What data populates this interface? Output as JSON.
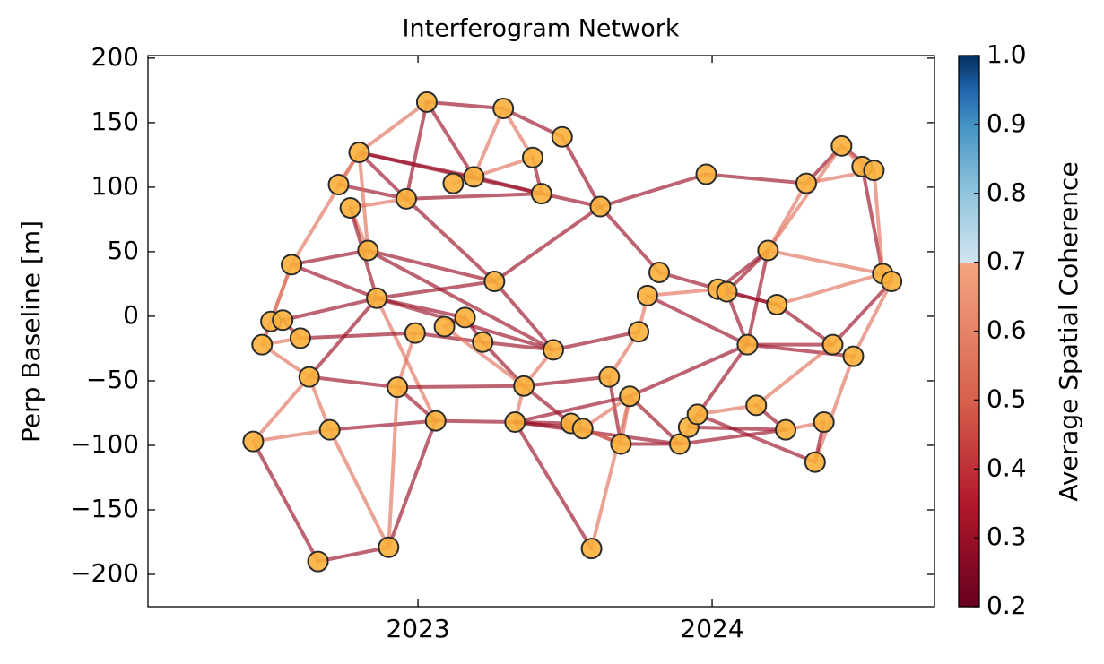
{
  "chart_data": {
    "type": "network",
    "title": "Interferogram Network",
    "ylabel": "Perp Baseline [m]",
    "xlim": [
      2022.082,
      2024.756
    ],
    "ylim": [
      -225,
      202
    ],
    "xticks": [
      2023,
      2024
    ],
    "yticks": [
      {
        "value": -200,
        "label": "−200"
      },
      {
        "value": -150,
        "label": "−150"
      },
      {
        "value": -100,
        "label": "−100"
      },
      {
        "value": -50,
        "label": "−50"
      },
      0,
      50,
      100,
      150,
      200
    ],
    "nodes": {
      "color": "#fbb03b",
      "x": [
        2023.03,
        2023.29,
        2023.49,
        2023.39,
        2023.19,
        2023.12,
        2023.42,
        2023.62,
        2022.8,
        2022.73,
        2022.77,
        2022.96,
        2022.83,
        2022.57,
        2022.86,
        2023.26,
        2022.5,
        2022.54,
        2022.47,
        2022.6,
        2022.99,
        2023.09,
        2023.16,
        2023.22,
        2023.46,
        2022.63,
        2022.93,
        2023.36,
        2023.06,
        2023.33,
        2023.52,
        2023.56,
        2022.7,
        2022.44,
        2022.66,
        2022.9,
        2023.59,
        2023.65,
        2023.72,
        2023.75,
        2023.78,
        2023.82,
        2023.69,
        2023.89,
        2023.92,
        2023.95,
        2023.98,
        2024.02,
        2024.05,
        2024.12,
        2024.19,
        2024.22,
        2024.15,
        2024.25,
        2024.32,
        2024.35,
        2024.38,
        2024.41,
        2024.44,
        2024.48,
        2024.51,
        2024.55,
        2024.58,
        2024.61
      ],
      "y": [
        166,
        161,
        139,
        123,
        108,
        103,
        95,
        85,
        127,
        102,
        84,
        91,
        51,
        40,
        14,
        27,
        -4,
        -3,
        -22,
        -17,
        -13,
        -8,
        -1,
        -20,
        -26,
        -47,
        -55,
        -54,
        -81,
        -82,
        -83,
        -87,
        -88,
        -97,
        -190,
        -179,
        -180,
        -47,
        -62,
        -12,
        16,
        34,
        -99,
        -99,
        -86,
        -76,
        110,
        21,
        19,
        -22,
        51,
        9,
        -69,
        -88,
        103,
        -113,
        -82,
        -22,
        132,
        -31,
        116,
        113,
        33,
        27
      ]
    },
    "edges": {
      "x": [
        [
          2023.03,
          2023.29
        ],
        [
          2023.03,
          2022.8
        ],
        [
          2023.03,
          2023.19
        ],
        [
          2023.03,
          2022.96
        ],
        [
          2023.29,
          2023.19
        ],
        [
          2023.29,
          2023.39
        ],
        [
          2023.29,
          2023.49
        ],
        [
          2023.49,
          2023.62
        ],
        [
          2023.39,
          2023.19
        ],
        [
          2023.39,
          2023.42
        ],
        [
          2023.19,
          2023.12
        ],
        [
          2023.19,
          2023.42
        ],
        [
          2022.8,
          2023.19
        ],
        [
          2022.8,
          2023.42
        ],
        [
          2022.8,
          2022.96
        ],
        [
          2022.8,
          2022.73
        ],
        [
          2022.8,
          2022.57
        ],
        [
          2022.73,
          2022.96
        ],
        [
          2022.77,
          2022.96
        ],
        [
          2022.77,
          2022.83
        ],
        [
          2022.96,
          2023.42
        ],
        [
          2022.96,
          2023.26
        ],
        [
          2022.83,
          2022.8
        ],
        [
          2022.83,
          2022.57
        ],
        [
          2022.83,
          2023.26
        ],
        [
          2022.57,
          2022.86
        ],
        [
          2022.57,
          2022.47
        ],
        [
          2022.57,
          2022.5
        ],
        [
          2022.86,
          2022.77
        ],
        [
          2022.86,
          2023.26
        ],
        [
          2022.86,
          2022.54
        ],
        [
          2022.86,
          2022.63
        ],
        [
          2022.86,
          2023.06
        ],
        [
          2022.86,
          2023.46
        ],
        [
          2023.26,
          2023.62
        ],
        [
          2023.26,
          2023.46
        ],
        [
          2023.42,
          2023.62
        ],
        [
          2023.62,
          2023.82
        ],
        [
          2023.62,
          2023.98
        ],
        [
          2023.98,
          2024.32
        ],
        [
          2024.32,
          2024.44
        ],
        [
          2024.32,
          2024.55
        ],
        [
          2024.44,
          2024.55
        ],
        [
          2024.44,
          2024.19
        ],
        [
          2024.32,
          2024.19
        ],
        [
          2024.19,
          2024.05
        ],
        [
          2024.19,
          2024.02
        ],
        [
          2024.19,
          2024.58
        ],
        [
          2024.19,
          2024.12
        ],
        [
          2024.51,
          2024.58
        ],
        [
          2024.55,
          2024.58
        ],
        [
          2024.44,
          2024.51
        ],
        [
          2024.58,
          2024.22
        ],
        [
          2024.61,
          2024.41
        ],
        [
          2024.61,
          2024.48
        ],
        [
          2024.48,
          2024.35
        ],
        [
          2024.48,
          2024.12
        ],
        [
          2024.41,
          2024.12
        ],
        [
          2024.41,
          2024.15
        ],
        [
          2024.41,
          2024.22
        ],
        [
          2024.22,
          2024.05
        ],
        [
          2024.22,
          2024.02
        ],
        [
          2024.05,
          2024.12
        ],
        [
          2023.82,
          2024.02
        ],
        [
          2024.12,
          2023.78
        ],
        [
          2024.12,
          2023.72
        ],
        [
          2024.12,
          2023.92
        ],
        [
          2024.15,
          2023.95
        ],
        [
          2024.15,
          2024.25
        ],
        [
          2024.25,
          2024.38
        ],
        [
          2024.25,
          2023.89
        ],
        [
          2024.35,
          2023.95
        ],
        [
          2023.92,
          2024.25
        ],
        [
          2023.92,
          2023.95
        ],
        [
          2023.95,
          2023.89
        ],
        [
          2023.89,
          2023.69
        ],
        [
          2023.89,
          2023.72
        ],
        [
          2023.69,
          2023.72
        ],
        [
          2023.69,
          2023.52
        ],
        [
          2023.69,
          2023.65
        ],
        [
          2023.72,
          2023.59
        ],
        [
          2023.72,
          2023.56
        ],
        [
          2023.72,
          2023.33
        ],
        [
          2023.59,
          2023.33
        ],
        [
          2023.78,
          2023.75
        ],
        [
          2023.75,
          2023.65
        ],
        [
          2023.75,
          2023.46
        ],
        [
          2023.78,
          2024.02
        ],
        [
          2023.65,
          2023.36
        ],
        [
          2023.46,
          2023.36
        ],
        [
          2023.46,
          2023.22
        ],
        [
          2023.46,
          2022.83
        ],
        [
          2023.22,
          2023.16
        ],
        [
          2023.22,
          2023.36
        ],
        [
          2023.22,
          2022.99
        ],
        [
          2023.16,
          2023.09
        ],
        [
          2023.16,
          2022.86
        ],
        [
          2023.09,
          2023.36
        ],
        [
          2022.99,
          2022.93
        ],
        [
          2022.99,
          2022.6
        ],
        [
          2022.6,
          2022.54
        ],
        [
          2022.5,
          2022.47
        ],
        [
          2022.47,
          2022.63
        ],
        [
          2022.47,
          2022.6
        ],
        [
          2022.63,
          2022.93
        ],
        [
          2022.63,
          2022.7
        ],
        [
          2022.93,
          2023.36
        ],
        [
          2022.93,
          2023.06
        ],
        [
          2023.36,
          2023.33
        ],
        [
          2023.36,
          2023.52
        ],
        [
          2023.06,
          2023.33
        ],
        [
          2023.06,
          2022.9
        ],
        [
          2023.06,
          2022.7
        ],
        [
          2023.33,
          2023.52
        ],
        [
          2022.7,
          2022.9
        ],
        [
          2022.44,
          2022.66
        ],
        [
          2022.66,
          2022.9
        ],
        [
          2022.44,
          2022.63
        ],
        [
          2022.44,
          2022.7
        ],
        [
          2022.9,
          2022.93
        ],
        [
          2023.33,
          2023.89
        ],
        [
          2023.52,
          2023.69
        ],
        [
          2023.56,
          2023.33
        ],
        [
          2024.38,
          2024.35
        ]
      ],
      "y": [
        [
          166,
          161
        ],
        [
          166,
          127
        ],
        [
          166,
          108
        ],
        [
          166,
          91
        ],
        [
          161,
          108
        ],
        [
          161,
          123
        ],
        [
          161,
          139
        ],
        [
          139,
          85
        ],
        [
          123,
          108
        ],
        [
          123,
          95
        ],
        [
          108,
          103
        ],
        [
          108,
          95
        ],
        [
          127,
          108
        ],
        [
          127,
          95
        ],
        [
          127,
          91
        ],
        [
          127,
          102
        ],
        [
          127,
          40
        ],
        [
          102,
          91
        ],
        [
          84,
          91
        ],
        [
          84,
          51
        ],
        [
          91,
          95
        ],
        [
          91,
          27
        ],
        [
          51,
          127
        ],
        [
          51,
          40
        ],
        [
          51,
          27
        ],
        [
          40,
          14
        ],
        [
          40,
          -22
        ],
        [
          40,
          -4
        ],
        [
          14,
          84
        ],
        [
          14,
          27
        ],
        [
          14,
          -3
        ],
        [
          14,
          -47
        ],
        [
          14,
          -81
        ],
        [
          14,
          -26
        ],
        [
          27,
          85
        ],
        [
          27,
          -26
        ],
        [
          95,
          85
        ],
        [
          85,
          34
        ],
        [
          85,
          110
        ],
        [
          110,
          103
        ],
        [
          103,
          132
        ],
        [
          103,
          113
        ],
        [
          132,
          113
        ],
        [
          132,
          51
        ],
        [
          103,
          51
        ],
        [
          51,
          19
        ],
        [
          51,
          21
        ],
        [
          51,
          33
        ],
        [
          51,
          -22
        ],
        [
          116,
          33
        ],
        [
          113,
          33
        ],
        [
          132,
          116
        ],
        [
          33,
          9
        ],
        [
          27,
          -22
        ],
        [
          27,
          -31
        ],
        [
          -31,
          -113
        ],
        [
          -31,
          -22
        ],
        [
          -22,
          -22
        ],
        [
          -22,
          -69
        ],
        [
          -22,
          9
        ],
        [
          9,
          19
        ],
        [
          9,
          21
        ],
        [
          19,
          -22
        ],
        [
          34,
          21
        ],
        [
          -22,
          16
        ],
        [
          -22,
          -62
        ],
        [
          -22,
          -86
        ],
        [
          -69,
          -76
        ],
        [
          -69,
          -88
        ],
        [
          -88,
          -82
        ],
        [
          -88,
          -99
        ],
        [
          -113,
          -76
        ],
        [
          -86,
          -88
        ],
        [
          -86,
          -76
        ],
        [
          -76,
          -99
        ],
        [
          -99,
          -99
        ],
        [
          -99,
          -62
        ],
        [
          -99,
          -62
        ],
        [
          -99,
          -83
        ],
        [
          -99,
          -47
        ],
        [
          -62,
          -180
        ],
        [
          -62,
          -87
        ],
        [
          -62,
          -82
        ],
        [
          -180,
          -82
        ],
        [
          16,
          -12
        ],
        [
          -12,
          -47
        ],
        [
          -12,
          -26
        ],
        [
          16,
          21
        ],
        [
          -47,
          -54
        ],
        [
          -26,
          -54
        ],
        [
          -26,
          -20
        ],
        [
          -26,
          51
        ],
        [
          -20,
          -1
        ],
        [
          -20,
          -54
        ],
        [
          -20,
          -13
        ],
        [
          -1,
          -8
        ],
        [
          -1,
          14
        ],
        [
          -8,
          -54
        ],
        [
          -13,
          -55
        ],
        [
          -13,
          -17
        ],
        [
          -17,
          -3
        ],
        [
          -4,
          -22
        ],
        [
          -22,
          -47
        ],
        [
          -22,
          -17
        ],
        [
          -47,
          -55
        ],
        [
          -47,
          -88
        ],
        [
          -55,
          -54
        ],
        [
          -55,
          -81
        ],
        [
          -54,
          -82
        ],
        [
          -54,
          -83
        ],
        [
          -81,
          -82
        ],
        [
          -81,
          -179
        ],
        [
          -81,
          -88
        ],
        [
          -82,
          -83
        ],
        [
          -88,
          -179
        ],
        [
          -97,
          -190
        ],
        [
          -190,
          -179
        ],
        [
          -97,
          -47
        ],
        [
          -97,
          -88
        ],
        [
          -179,
          -55
        ],
        [
          -82,
          -99
        ],
        [
          -83,
          -99
        ],
        [
          -87,
          -82
        ],
        [
          -82,
          -113
        ]
      ],
      "values": [
        0.3,
        0.55,
        0.3,
        0.3,
        0.55,
        0.55,
        0.3,
        0.3,
        0.55,
        0.3,
        0.55,
        0.3,
        0.3,
        0.3,
        0.3,
        0.55,
        0.55,
        0.3,
        0.55,
        0.55,
        0.3,
        0.3,
        0.55,
        0.3,
        0.3,
        0.3,
        0.55,
        0.55,
        0.3,
        0.3,
        0.3,
        0.3,
        0.55,
        0.3,
        0.3,
        0.3,
        0.3,
        0.3,
        0.3,
        0.3,
        0.3,
        0.55,
        0.3,
        0.55,
        0.55,
        0.3,
        0.3,
        0.55,
        0.3,
        0.3,
        0.55,
        0.55,
        0.55,
        0.3,
        0.55,
        0.55,
        0.3,
        0.3,
        0.55,
        0.3,
        0.3,
        0.3,
        0.3,
        0.3,
        0.3,
        0.3,
        0.3,
        0.55,
        0.3,
        0.55,
        0.3,
        0.3,
        0.3,
        0.3,
        0.55,
        0.3,
        0.3,
        0.55,
        0.3,
        0.3,
        0.55,
        0.55,
        0.3,
        0.3,
        0.55,
        0.55,
        0.3,
        0.55,
        0.3,
        0.55,
        0.3,
        0.3,
        0.3,
        0.3,
        0.3,
        0.3,
        0.3,
        0.55,
        0.55,
        0.3,
        0.3,
        0.55,
        0.55,
        0.55,
        0.3,
        0.55,
        0.3,
        0.3,
        0.55,
        0.3,
        0.3,
        0.3,
        0.3,
        0.3,
        0.55,
        0.3,
        0.3,
        0.55,
        0.55,
        0.55,
        0.3,
        0.55,
        0.3,
        0.3
      ]
    },
    "colorbar": {
      "label": "Average Spatial Coherence",
      "lim": [
        0.2,
        1.0
      ],
      "ticks": [
        0.2,
        0.3,
        0.4,
        0.5,
        0.6,
        0.7,
        0.8,
        0.9,
        {
          "value": 1.0,
          "label": "1.0"
        }
      ],
      "colormap": [
        {
          "value": 0.2,
          "color": "#67001f"
        },
        {
          "value": 0.35,
          "color": "#b2182b"
        },
        {
          "value": 0.5,
          "color": "#d6604d"
        },
        {
          "value": 0.7,
          "color": "#f4a582"
        },
        {
          "value": 0.7,
          "color": "#d1e5f0"
        },
        {
          "value": 0.8,
          "color": "#92c5de"
        },
        {
          "value": 0.9,
          "color": "#4393c3"
        },
        {
          "value": 0.95,
          "color": "#2166ac"
        },
        {
          "value": 1.0,
          "color": "#053061"
        }
      ]
    }
  }
}
